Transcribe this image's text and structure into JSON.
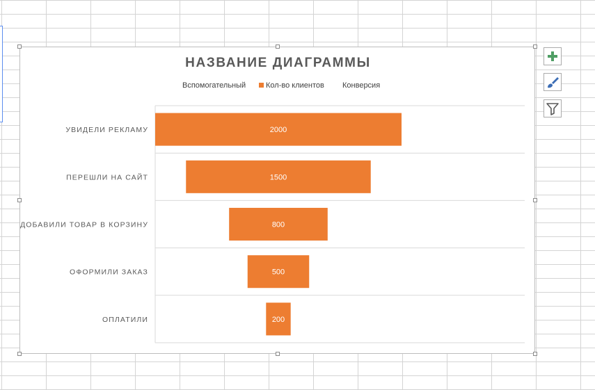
{
  "colors": {
    "bar": "#ED7D31",
    "text": "#595959",
    "grid": "#D9D9D9",
    "plus_icon": "#4F9E64",
    "brush_icon": "#3C6DB5"
  },
  "side_buttons": {
    "elements_icon": "plus-icon",
    "styles_icon": "brush-icon",
    "filter_icon": "filter-icon"
  },
  "chart_data": {
    "type": "bar",
    "subtype": "funnel-stacked-horizontal",
    "title": "НАЗВАНИЕ ДИАГРАММЫ",
    "legend": [
      "Вспомогательный",
      "Кол-во клиентов",
      "Конверсия"
    ],
    "legend_position": "top",
    "categories": [
      "УВИДЕЛИ РЕКЛАМУ",
      "ПЕРЕШЛИ НА САЙТ",
      "ДОБАВИЛИ ТОВАР В КОРЗИНУ",
      "ОФОРМИЛИ ЗАКАЗ",
      "ОПЛАТИЛИ"
    ],
    "series": [
      {
        "name": "Вспомогательный",
        "values": [
          0,
          250,
          600,
          750,
          900
        ],
        "color": "none"
      },
      {
        "name": "Кол-во клиентов",
        "values": [
          2000,
          1500,
          800,
          500,
          200
        ],
        "color": "#ED7D31"
      },
      {
        "name": "Конверсия",
        "values": [
          0,
          0,
          0,
          0,
          0
        ],
        "color": "none"
      }
    ],
    "data_labels": [
      "2000",
      "1500",
      "800",
      "500",
      "200"
    ],
    "xlim": [
      0,
      3000
    ],
    "grid": true
  }
}
